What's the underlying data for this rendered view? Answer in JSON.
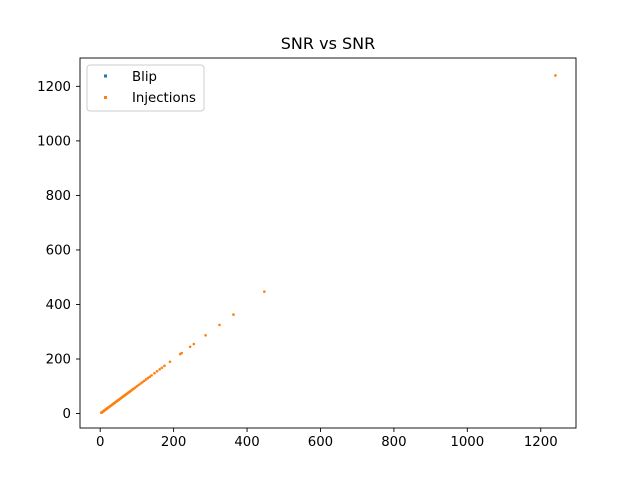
{
  "chart_data": {
    "type": "scatter",
    "title": "SNR vs SNR",
    "xlabel": "",
    "ylabel": "",
    "xlim": [
      -55,
      1296
    ],
    "ylim": [
      -53,
      1304
    ],
    "xticks": [
      0,
      200,
      400,
      600,
      800,
      1000,
      1200
    ],
    "yticks": [
      0,
      200,
      400,
      600,
      800,
      1000,
      1200
    ],
    "grid": false,
    "legend_placement": "upper-left",
    "series": [
      {
        "name": "Blip",
        "color": "#1f77b4",
        "points": []
      },
      {
        "name": "Injections",
        "color": "#ff7f0e",
        "points": [
          [
            3,
            3
          ],
          [
            4,
            4
          ],
          [
            5,
            5
          ],
          [
            6,
            6
          ],
          [
            7,
            7
          ],
          [
            8,
            8
          ],
          [
            9,
            9
          ],
          [
            10,
            10
          ],
          [
            11,
            11
          ],
          [
            12,
            12
          ],
          [
            13,
            13
          ],
          [
            14,
            14
          ],
          [
            15,
            15
          ],
          [
            16,
            16
          ],
          [
            17,
            17
          ],
          [
            18,
            18
          ],
          [
            19,
            19
          ],
          [
            20,
            20
          ],
          [
            22,
            22
          ],
          [
            24,
            24
          ],
          [
            26,
            26
          ],
          [
            28,
            28
          ],
          [
            30,
            30
          ],
          [
            32,
            32
          ],
          [
            34,
            34
          ],
          [
            36,
            36
          ],
          [
            38,
            38
          ],
          [
            40,
            40
          ],
          [
            42,
            42
          ],
          [
            44,
            44
          ],
          [
            46,
            46
          ],
          [
            48,
            48
          ],
          [
            50,
            50
          ],
          [
            52,
            52
          ],
          [
            54,
            54
          ],
          [
            56,
            56
          ],
          [
            58,
            58
          ],
          [
            60,
            60
          ],
          [
            62,
            62
          ],
          [
            64,
            64
          ],
          [
            66,
            66
          ],
          [
            68,
            68
          ],
          [
            70,
            70
          ],
          [
            72,
            72
          ],
          [
            74,
            74
          ],
          [
            76,
            76
          ],
          [
            78,
            78
          ],
          [
            80,
            80
          ],
          [
            82,
            82
          ],
          [
            85,
            85
          ],
          [
            88,
            88
          ],
          [
            91,
            91
          ],
          [
            95,
            95
          ],
          [
            100,
            100
          ],
          [
            105,
            105
          ],
          [
            110,
            110
          ],
          [
            115,
            115
          ],
          [
            120,
            120
          ],
          [
            125,
            125
          ],
          [
            130,
            130
          ],
          [
            135,
            135
          ],
          [
            140,
            140
          ],
          [
            148,
            148
          ],
          [
            155,
            155
          ],
          [
            162,
            162
          ],
          [
            168,
            168
          ],
          [
            175,
            175
          ],
          [
            190,
            190
          ],
          [
            218,
            218
          ],
          [
            222,
            222
          ],
          [
            245,
            245
          ],
          [
            255,
            255
          ],
          [
            287,
            287
          ],
          [
            325,
            325
          ],
          [
            363,
            363
          ],
          [
            447,
            447
          ],
          [
            1240,
            1240
          ]
        ]
      }
    ]
  }
}
